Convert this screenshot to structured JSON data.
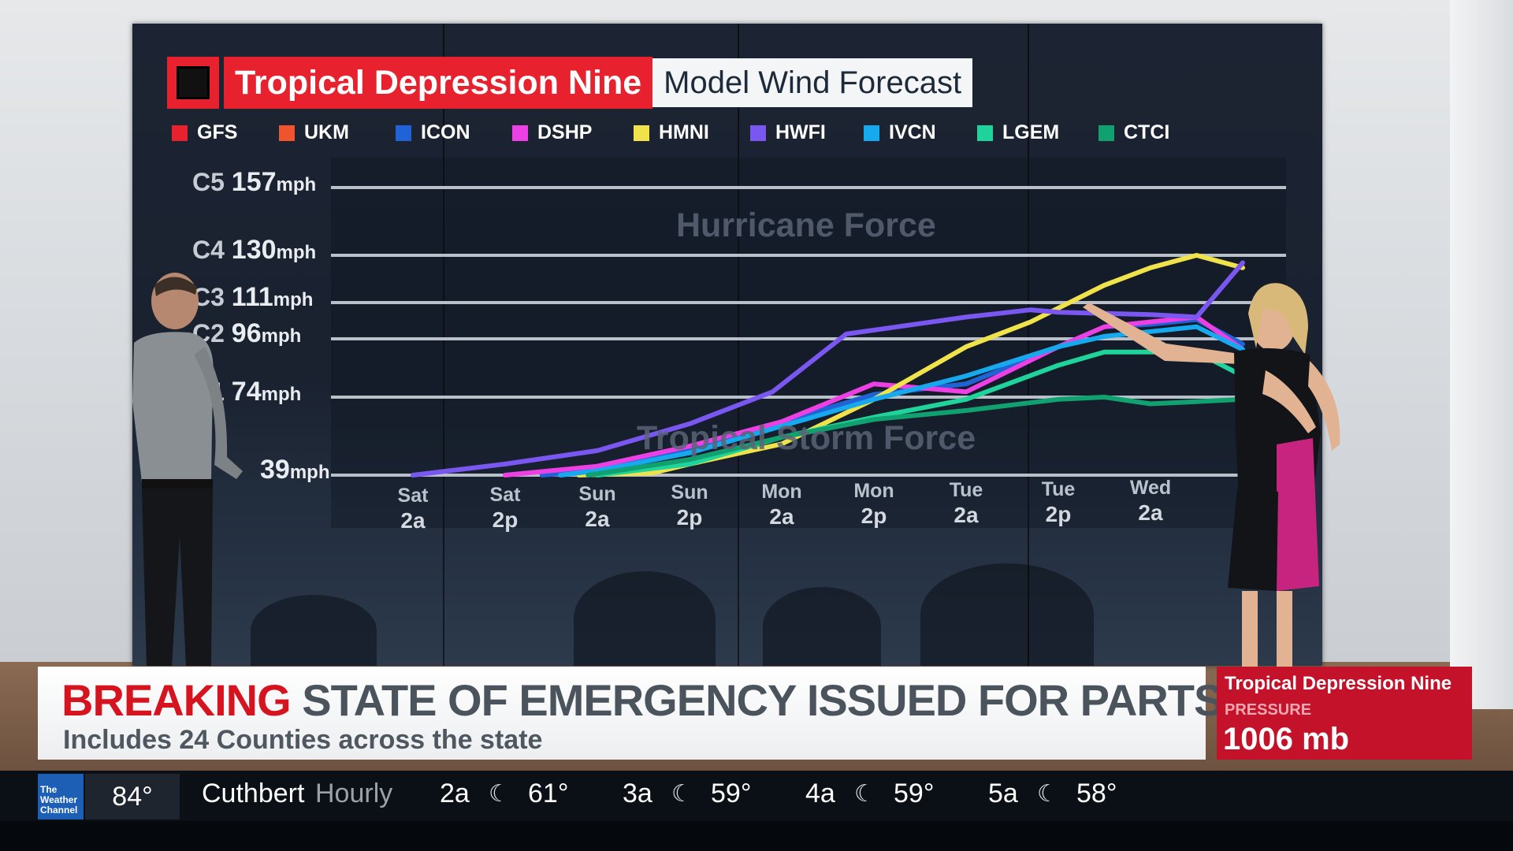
{
  "title": {
    "storm": "Tropical Depression Nine",
    "subject": "Model Wind Forecast"
  },
  "zones": {
    "upper": "Hurricane Force",
    "lower": "Tropical Storm Force"
  },
  "chart_data": {
    "type": "line",
    "title": "Tropical Depression Nine Model Wind Forecast",
    "xlabel": "",
    "ylabel": "",
    "x": [
      "Sat 2a",
      "Sat 2p",
      "Sun 2a",
      "Sun 2p",
      "Mon 2a",
      "Mon 2p",
      "Tue 2a",
      "Tue 2p",
      "Wed 2a"
    ],
    "x_ticks": [
      {
        "day": "Sat",
        "time": "2a"
      },
      {
        "day": "Sat",
        "time": "2p"
      },
      {
        "day": "Sun",
        "time": "2a"
      },
      {
        "day": "Sun",
        "time": "2p"
      },
      {
        "day": "Mon",
        "time": "2a"
      },
      {
        "day": "Mon",
        "time": "2p"
      },
      {
        "day": "Tue",
        "time": "2a"
      },
      {
        "day": "Tue",
        "time": "2p"
      },
      {
        "day": "Wed",
        "time": "2a"
      }
    ],
    "y_ticks": [
      {
        "category": "",
        "value": 39,
        "unit": "mph"
      },
      {
        "category": "C1",
        "value": 74,
        "unit": "mph"
      },
      {
        "category": "C2",
        "value": 96,
        "unit": "mph"
      },
      {
        "category": "C3",
        "value": 111,
        "unit": "mph"
      },
      {
        "category": "C4",
        "value": 130,
        "unit": "mph"
      },
      {
        "category": "C5",
        "value": 157,
        "unit": "mph"
      }
    ],
    "ylim": [
      39,
      157
    ],
    "grid": true,
    "legend_position": "top-left",
    "series": [
      {
        "name": "GFS",
        "color": "#e8212e",
        "points": []
      },
      {
        "name": "UKM",
        "color": "#f0542f",
        "points": []
      },
      {
        "name": "ICON",
        "color": "#1f63d6",
        "points": [
          [
            1.4,
            39
          ],
          [
            2,
            41
          ],
          [
            3,
            50
          ],
          [
            4,
            63
          ],
          [
            5,
            75
          ],
          [
            6,
            79
          ],
          [
            7,
            93
          ],
          [
            7.5,
            101
          ],
          [
            8,
            102
          ],
          [
            8.5,
            104
          ],
          [
            9,
            94
          ]
        ]
      },
      {
        "name": "DSHP",
        "color": "#ec3fe4",
        "points": [
          [
            1,
            39
          ],
          [
            2,
            43
          ],
          [
            3,
            52
          ],
          [
            4,
            63
          ],
          [
            5,
            79
          ],
          [
            6,
            76
          ],
          [
            7,
            93
          ],
          [
            7.5,
            101
          ],
          [
            8,
            103
          ],
          [
            8.5,
            105
          ],
          [
            9,
            92
          ]
        ]
      },
      {
        "name": "HMNI",
        "color": "#efe24a",
        "points": [
          [
            1.8,
            39
          ],
          [
            2.6,
            40
          ],
          [
            3,
            44
          ],
          [
            4,
            53
          ],
          [
            5,
            73
          ],
          [
            6,
            93
          ],
          [
            6.7,
            103
          ],
          [
            7.5,
            118
          ],
          [
            8,
            125
          ],
          [
            8.5,
            130
          ],
          [
            9,
            125
          ]
        ]
      },
      {
        "name": "HWFI",
        "color": "#7a57f0",
        "points": [
          [
            0,
            39
          ],
          [
            1,
            44
          ],
          [
            2,
            50
          ],
          [
            3,
            62
          ],
          [
            3.9,
            76
          ],
          [
            4.7,
            98
          ],
          [
            6,
            105
          ],
          [
            6.7,
            108
          ],
          [
            7,
            107
          ],
          [
            8,
            106
          ],
          [
            8.5,
            105
          ],
          [
            9,
            127
          ]
        ]
      },
      {
        "name": "IVCN",
        "color": "#16a9ee",
        "points": [
          [
            1.6,
            39
          ],
          [
            2,
            41
          ],
          [
            3,
            49
          ],
          [
            4,
            61
          ],
          [
            5,
            73
          ],
          [
            6,
            82
          ],
          [
            7,
            93
          ],
          [
            7.5,
            97
          ],
          [
            8,
            99
          ],
          [
            8.5,
            101
          ],
          [
            9,
            92
          ]
        ]
      },
      {
        "name": "LGEM",
        "color": "#1fd39a",
        "points": [
          [
            2,
            39
          ],
          [
            3,
            44
          ],
          [
            4,
            56
          ],
          [
            5,
            65
          ],
          [
            6,
            73
          ],
          [
            7,
            86
          ],
          [
            7.5,
            91
          ],
          [
            8,
            91
          ],
          [
            8.5,
            91
          ],
          [
            9,
            82
          ]
        ]
      },
      {
        "name": "CTCI",
        "color": "#11a171",
        "points": [
          [
            1.9,
            39
          ],
          [
            3,
            46
          ],
          [
            4,
            56
          ],
          [
            5,
            64
          ],
          [
            6,
            68
          ],
          [
            7,
            73
          ],
          [
            7.5,
            74
          ],
          [
            8,
            71
          ],
          [
            8.5,
            72
          ],
          [
            9,
            73
          ]
        ]
      }
    ]
  },
  "lower_third": {
    "tag": "BREAKING",
    "headline": "STATE OF EMERGENCY ISSUED FOR PARTS OF FL",
    "subline": "Includes 24 Counties across the state"
  },
  "info_box": {
    "title": "Tropical Depression Nine",
    "label": "PRESSURE",
    "value": "1006 mb"
  },
  "ticker": {
    "logo": "The Weather Channel",
    "current_temp": "84°",
    "location": "Cuthbert",
    "mode": "Hourly",
    "hours": [
      {
        "time": "2a",
        "temp": "61°"
      },
      {
        "time": "3a",
        "temp": "59°"
      },
      {
        "time": "4a",
        "temp": "59°"
      },
      {
        "time": "5a",
        "temp": "58°"
      }
    ]
  }
}
